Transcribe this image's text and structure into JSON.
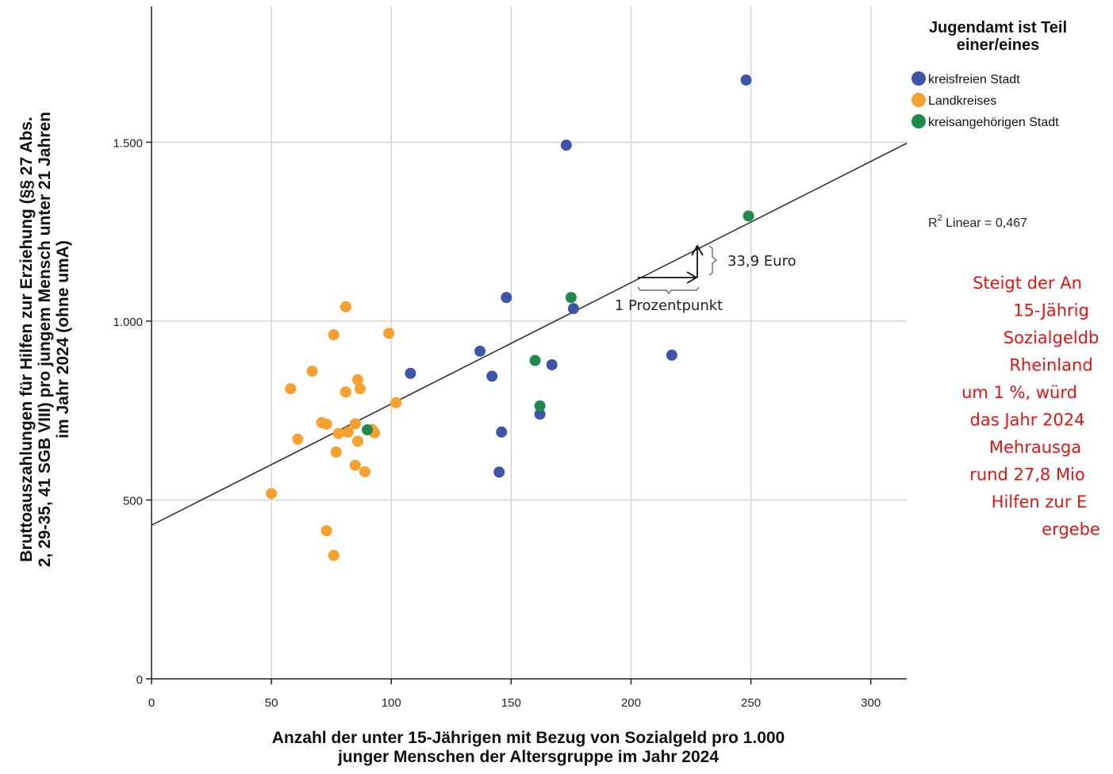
{
  "chart_data": {
    "type": "scatter",
    "xlabel": [
      "Anzahl der unter 15-Jährigen mit Bezug von Sozialgeld pro 1.000",
      "junger Menschen der Altersgruppe im Jahr 2024"
    ],
    "ylabel": [
      "Bruttoauszahlungen für Hilfen zur Erziehung (§§ 27 Abs.",
      "2, 29-35, 41 SGB VIII) pro jungem Mensch unter 21 Jahren",
      "im Jahr 2024 (ohne umA)"
    ],
    "xlim": [
      0,
      315
    ],
    "ylim": [
      0,
      1880
    ],
    "x_ticks": [
      0,
      50,
      100,
      150,
      200,
      250,
      300
    ],
    "x_tick_labels": [
      "0",
      "50",
      "100",
      "150",
      "200",
      "250",
      "300"
    ],
    "y_ticks": [
      0,
      500,
      1000,
      1500
    ],
    "y_tick_labels": [
      "0",
      "500",
      "1.000",
      "1.500"
    ],
    "grid": true,
    "legend": {
      "title": [
        "Jugendamt ist Teil",
        "einer/eines"
      ],
      "placement": "top-right"
    },
    "series": [
      {
        "name": "kreisfreien Stadt",
        "color": "#3d54a8",
        "points": [
          [
            248,
            1674
          ],
          [
            173,
            1492
          ],
          [
            148,
            1066
          ],
          [
            176,
            1035
          ],
          [
            137,
            916
          ],
          [
            108,
            854
          ],
          [
            142,
            846
          ],
          [
            167,
            878
          ],
          [
            217,
            905
          ],
          [
            162,
            740
          ],
          [
            146,
            690
          ],
          [
            145,
            578
          ]
        ]
      },
      {
        "name": "Landkreises",
        "color": "#f7a12c",
        "points": [
          [
            81,
            1040
          ],
          [
            76,
            962
          ],
          [
            99,
            966
          ],
          [
            67,
            860
          ],
          [
            58,
            811
          ],
          [
            86,
            836
          ],
          [
            87,
            811
          ],
          [
            81,
            802
          ],
          [
            102,
            772
          ],
          [
            71,
            716
          ],
          [
            73,
            712
          ],
          [
            85,
            713
          ],
          [
            82,
            690
          ],
          [
            78,
            686
          ],
          [
            92,
            697
          ],
          [
            93,
            688
          ],
          [
            61,
            670
          ],
          [
            86,
            664
          ],
          [
            77,
            634
          ],
          [
            85,
            597
          ],
          [
            89,
            579
          ],
          [
            50,
            518
          ],
          [
            73,
            414
          ],
          [
            76,
            345
          ]
        ]
      },
      {
        "name": "kreisangehörigen Stadt",
        "color": "#1e8a4c",
        "points": [
          [
            249,
            1294
          ],
          [
            175,
            1066
          ],
          [
            160,
            890
          ],
          [
            162,
            763
          ],
          [
            90,
            696
          ]
        ]
      }
    ],
    "fit_line": {
      "type": "linear",
      "intercept": 429.4,
      "slope": 3.39,
      "color": "#333333",
      "label": "R² Linear = 0,467",
      "label_prefix": "R",
      "label_sup": "2",
      "label_rest": " Linear = 0,467"
    },
    "annotations": {
      "delta_y": "33,9 Euro",
      "delta_x": "1 Prozentpunkt",
      "note_color": "#ee1111",
      "note_lines": [
        "Steigt der An",
        "15-Jährig",
        "Sozialgeldb",
        "Rheinland",
        "um 1 %, würd",
        "das Jahr 2024",
        "Mehrausga",
        "rund 27,8 Mio",
        "Hilfen zur E",
        "ergebe"
      ]
    }
  }
}
